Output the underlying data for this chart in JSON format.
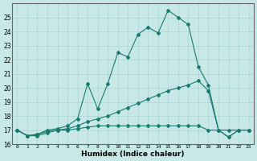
{
  "xlabel": "Humidex (Indice chaleur)",
  "ylabel": "",
  "bg_color": "#c8e8e8",
  "line_color": "#1a7a6e",
  "xlim": [
    -0.5,
    23.5
  ],
  "ylim": [
    16,
    26
  ],
  "yticks": [
    16,
    17,
    18,
    19,
    20,
    21,
    22,
    23,
    24,
    25
  ],
  "xticks": [
    0,
    1,
    2,
    3,
    4,
    5,
    6,
    7,
    8,
    9,
    10,
    11,
    12,
    13,
    14,
    15,
    16,
    17,
    18,
    19,
    20,
    21,
    22,
    23
  ],
  "series": [
    {
      "x": [
        0,
        1,
        2,
        3,
        4,
        5,
        6,
        7,
        8,
        9,
        10,
        11,
        12,
        13,
        14,
        15,
        16,
        17,
        18,
        19,
        20,
        21,
        22,
        23
      ],
      "y": [
        17.0,
        16.6,
        16.6,
        16.8,
        17.0,
        17.0,
        17.1,
        17.2,
        17.3,
        17.3,
        17.3,
        17.3,
        17.3,
        17.3,
        17.3,
        17.3,
        17.3,
        17.3,
        17.3,
        17.0,
        17.0,
        17.0,
        17.0,
        17.0
      ]
    },
    {
      "x": [
        0,
        1,
        2,
        3,
        4,
        5,
        6,
        7,
        8,
        9,
        10,
        11,
        12,
        13,
        14,
        15,
        16,
        17,
        18,
        19,
        20,
        21,
        22,
        23
      ],
      "y": [
        17.0,
        16.6,
        16.7,
        16.9,
        17.0,
        17.1,
        17.3,
        17.6,
        17.8,
        18.0,
        18.3,
        18.6,
        18.9,
        19.2,
        19.5,
        19.8,
        20.0,
        20.2,
        20.5,
        19.8,
        17.0,
        16.5,
        17.0,
        17.0
      ]
    },
    {
      "x": [
        0,
        1,
        2,
        3,
        4,
        5,
        6,
        7,
        8,
        9,
        10,
        11,
        12,
        13,
        14,
        15,
        16,
        17,
        18,
        19,
        20,
        21,
        22,
        23
      ],
      "y": [
        17.0,
        16.6,
        16.7,
        17.0,
        17.1,
        17.3,
        17.8,
        20.3,
        18.5,
        20.3,
        22.5,
        22.2,
        23.8,
        24.3,
        23.9,
        25.5,
        25.0,
        24.5,
        21.5,
        20.2,
        17.0,
        16.5,
        17.0,
        17.0
      ]
    }
  ]
}
